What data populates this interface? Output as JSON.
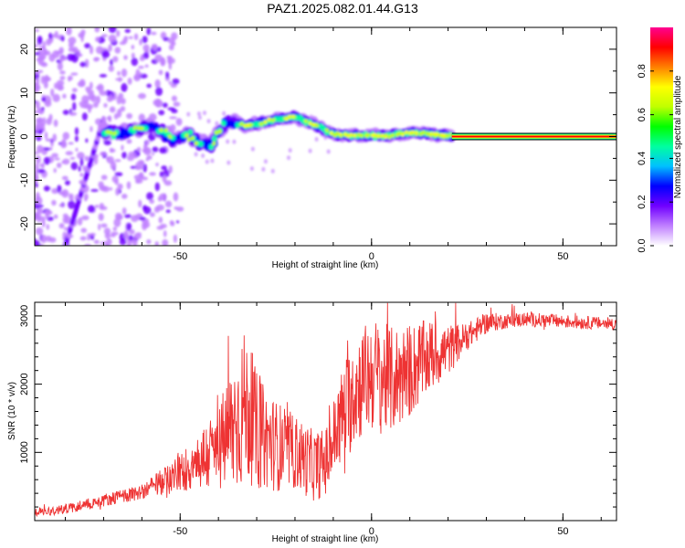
{
  "title": "PAZ1.2025.082.01.44.G13",
  "chart_data": [
    {
      "type": "heatmap",
      "xlabel": "Height of straight line (km)",
      "ylabel": "Frequency (Hz)",
      "xlim": [
        -88,
        64
      ],
      "ylim": [
        -25,
        25
      ],
      "xticks": [
        "-50",
        "0",
        "50"
      ],
      "yticks": [
        "20",
        "10",
        "0",
        "-10",
        "-20"
      ],
      "colorbar": {
        "label": "Normalized spectral amplitude",
        "range": [
          0.0,
          1.0
        ],
        "ticks": [
          "0.0",
          "0.2",
          "0.4",
          "0.6",
          "0.8"
        ],
        "colors": [
          "#ffffff",
          "#c080ff",
          "#7000ff",
          "#0000ff",
          "#00c0ff",
          "#00ffa0",
          "#00ff00",
          "#c0ff00",
          "#ffff00",
          "#ff8000",
          "#ff0000",
          "#ff0090"
        ]
      },
      "main_track": [
        {
          "x": -70,
          "y": 1.0
        },
        {
          "x": -65,
          "y": 0.8
        },
        {
          "x": -58,
          "y": 2.5
        },
        {
          "x": -55,
          "y": 1.2
        },
        {
          "x": -52,
          "y": -0.5
        },
        {
          "x": -48,
          "y": 0.5
        },
        {
          "x": -45,
          "y": -1.5
        },
        {
          "x": -42,
          "y": -2.0
        },
        {
          "x": -38,
          "y": 3.5
        },
        {
          "x": -33,
          "y": 2.5
        },
        {
          "x": -29,
          "y": 3.0
        },
        {
          "x": -25,
          "y": 4.0
        },
        {
          "x": -20,
          "y": 4.5
        },
        {
          "x": -16,
          "y": 3.0
        },
        {
          "x": -13,
          "y": 2.0
        },
        {
          "x": -10,
          "y": 0.5
        },
        {
          "x": -5,
          "y": 0.3
        },
        {
          "x": 0,
          "y": 0.2
        },
        {
          "x": 5,
          "y": 0.2
        },
        {
          "x": 10,
          "y": 1.0
        },
        {
          "x": 15,
          "y": 0.6
        },
        {
          "x": 20,
          "y": 0.2
        },
        {
          "x": 64,
          "y": 0.0
        }
      ],
      "diagonal_feature": {
        "start": {
          "x": -80,
          "y": -25
        },
        "end": {
          "x": -70,
          "y": 4
        }
      }
    },
    {
      "type": "line",
      "xlabel": "Height of straight line (km)",
      "ylabel": "SNR (10 * v/v)",
      "xlim": [
        -88,
        64
      ],
      "ylim": [
        0,
        3200
      ],
      "xticks": [
        "-50",
        "0",
        "50"
      ],
      "yticks": [
        "3000",
        "2000",
        "1000"
      ],
      "color": "#ee3333",
      "trend": [
        {
          "x": -88,
          "y": 120
        },
        {
          "x": -80,
          "y": 170
        },
        {
          "x": -70,
          "y": 300
        },
        {
          "x": -60,
          "y": 420
        },
        {
          "x": -50,
          "y": 700
        },
        {
          "x": -45,
          "y": 880
        },
        {
          "x": -40,
          "y": 1050
        },
        {
          "x": -36,
          "y": 1400
        },
        {
          "x": -33,
          "y": 1700
        },
        {
          "x": -30,
          "y": 1300
        },
        {
          "x": -25,
          "y": 1100
        },
        {
          "x": -20,
          "y": 1000
        },
        {
          "x": -15,
          "y": 800
        },
        {
          "x": -12,
          "y": 850
        },
        {
          "x": -8,
          "y": 1500
        },
        {
          "x": -4,
          "y": 1950
        },
        {
          "x": 0,
          "y": 2150
        },
        {
          "x": 5,
          "y": 2050
        },
        {
          "x": 10,
          "y": 2200
        },
        {
          "x": 15,
          "y": 2400
        },
        {
          "x": 20,
          "y": 2500
        },
        {
          "x": 25,
          "y": 2700
        },
        {
          "x": 30,
          "y": 2900
        },
        {
          "x": 40,
          "y": 2950
        },
        {
          "x": 50,
          "y": 2920
        },
        {
          "x": 64,
          "y": 2880
        }
      ],
      "noise": [
        {
          "x": -88,
          "y": 60
        },
        {
          "x": -60,
          "y": 110
        },
        {
          "x": -50,
          "y": 280
        },
        {
          "x": -40,
          "y": 650
        },
        {
          "x": -34,
          "y": 1150
        },
        {
          "x": -28,
          "y": 750
        },
        {
          "x": -20,
          "y": 550
        },
        {
          "x": -12,
          "y": 500
        },
        {
          "x": -6,
          "y": 800
        },
        {
          "x": 2,
          "y": 850
        },
        {
          "x": 10,
          "y": 700
        },
        {
          "x": 18,
          "y": 450
        },
        {
          "x": 25,
          "y": 200
        },
        {
          "x": 35,
          "y": 110
        },
        {
          "x": 64,
          "y": 90
        }
      ]
    }
  ]
}
